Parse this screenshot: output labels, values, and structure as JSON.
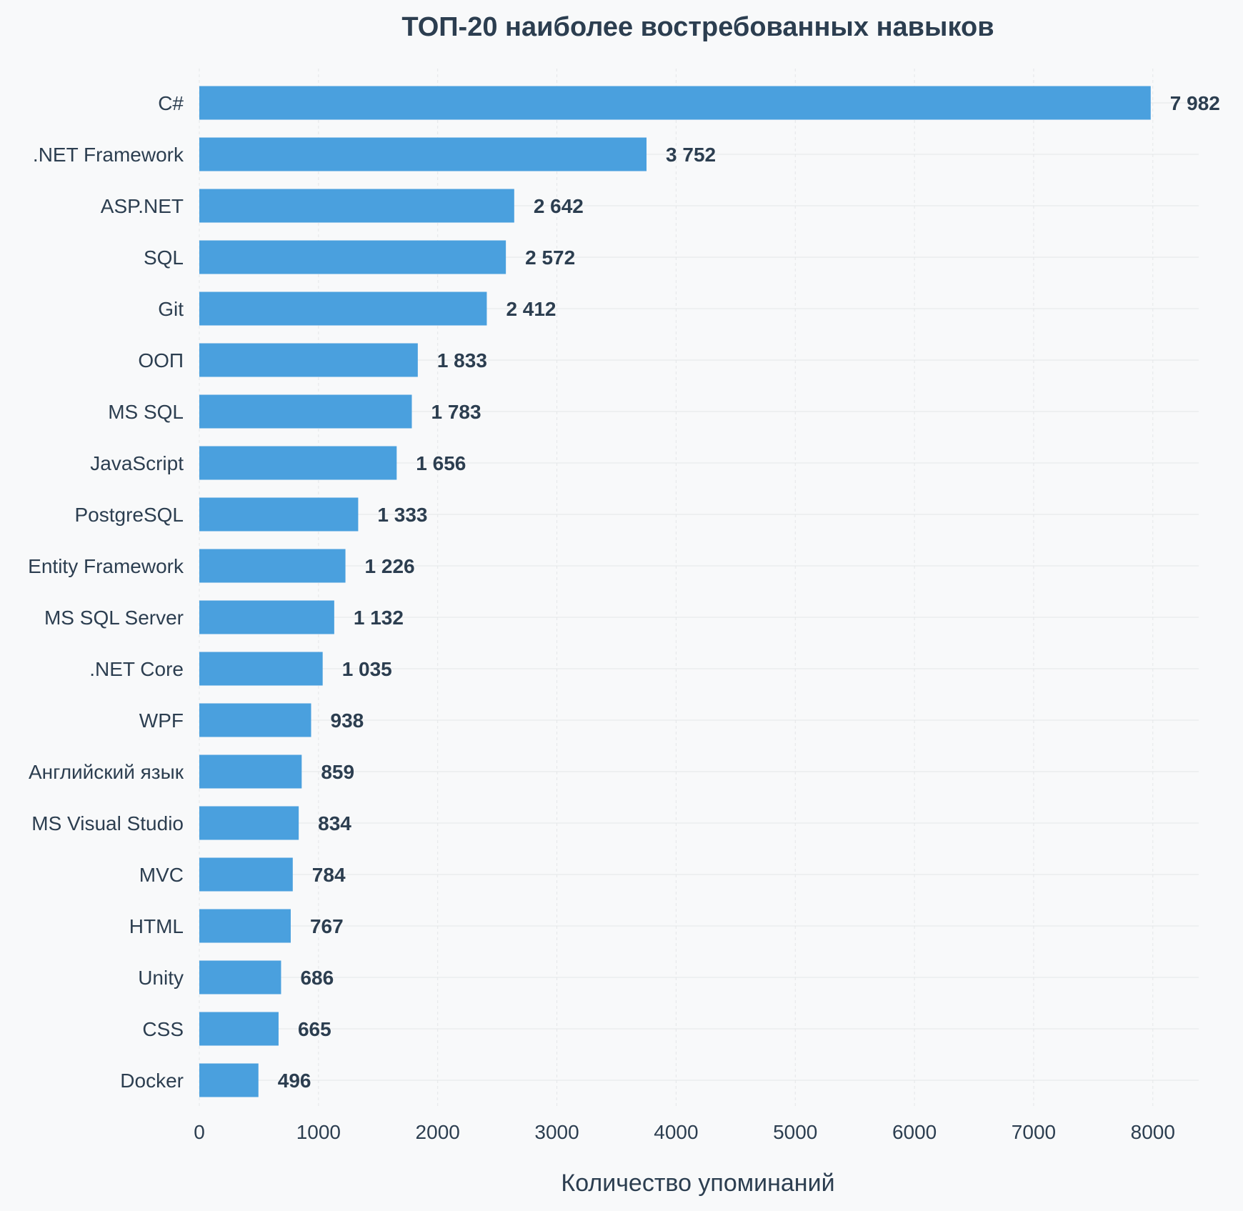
{
  "chart_data": {
    "type": "bar",
    "orientation": "horizontal",
    "title": "ТОП-20 наиболее востребованных навыков",
    "xlabel": "Количество упоминаний",
    "ylabel": "",
    "xlim": [
      0,
      8400
    ],
    "xticks": [
      0,
      1000,
      2000,
      3000,
      4000,
      5000,
      6000,
      7000,
      8000
    ],
    "grid": true,
    "bar_color": "#4aa0de",
    "text_color": "#2c3e50",
    "background": "#f8f9fa",
    "categories": [
      "C#",
      ".NET Framework",
      "ASP.NET",
      "SQL",
      "Git",
      "ООП",
      "MS SQL",
      "JavaScript",
      "PostgreSQL",
      "Entity Framework",
      "MS SQL Server",
      ".NET Core",
      "WPF",
      "Английский язык",
      "MS Visual Studio",
      "MVC",
      "HTML",
      "Unity",
      "CSS",
      "Docker"
    ],
    "values": [
      7982,
      3752,
      2642,
      2572,
      2412,
      1833,
      1783,
      1656,
      1333,
      1226,
      1132,
      1035,
      938,
      859,
      834,
      784,
      767,
      686,
      665,
      496
    ],
    "value_labels": [
      "7 982",
      "3 752",
      "2 642",
      "2 572",
      "2 412",
      "1 833",
      "1 783",
      "1 656",
      "1 333",
      "1 226",
      "1 132",
      "1 035",
      "938",
      "859",
      "834",
      "784",
      "767",
      "686",
      "665",
      "496"
    ]
  }
}
